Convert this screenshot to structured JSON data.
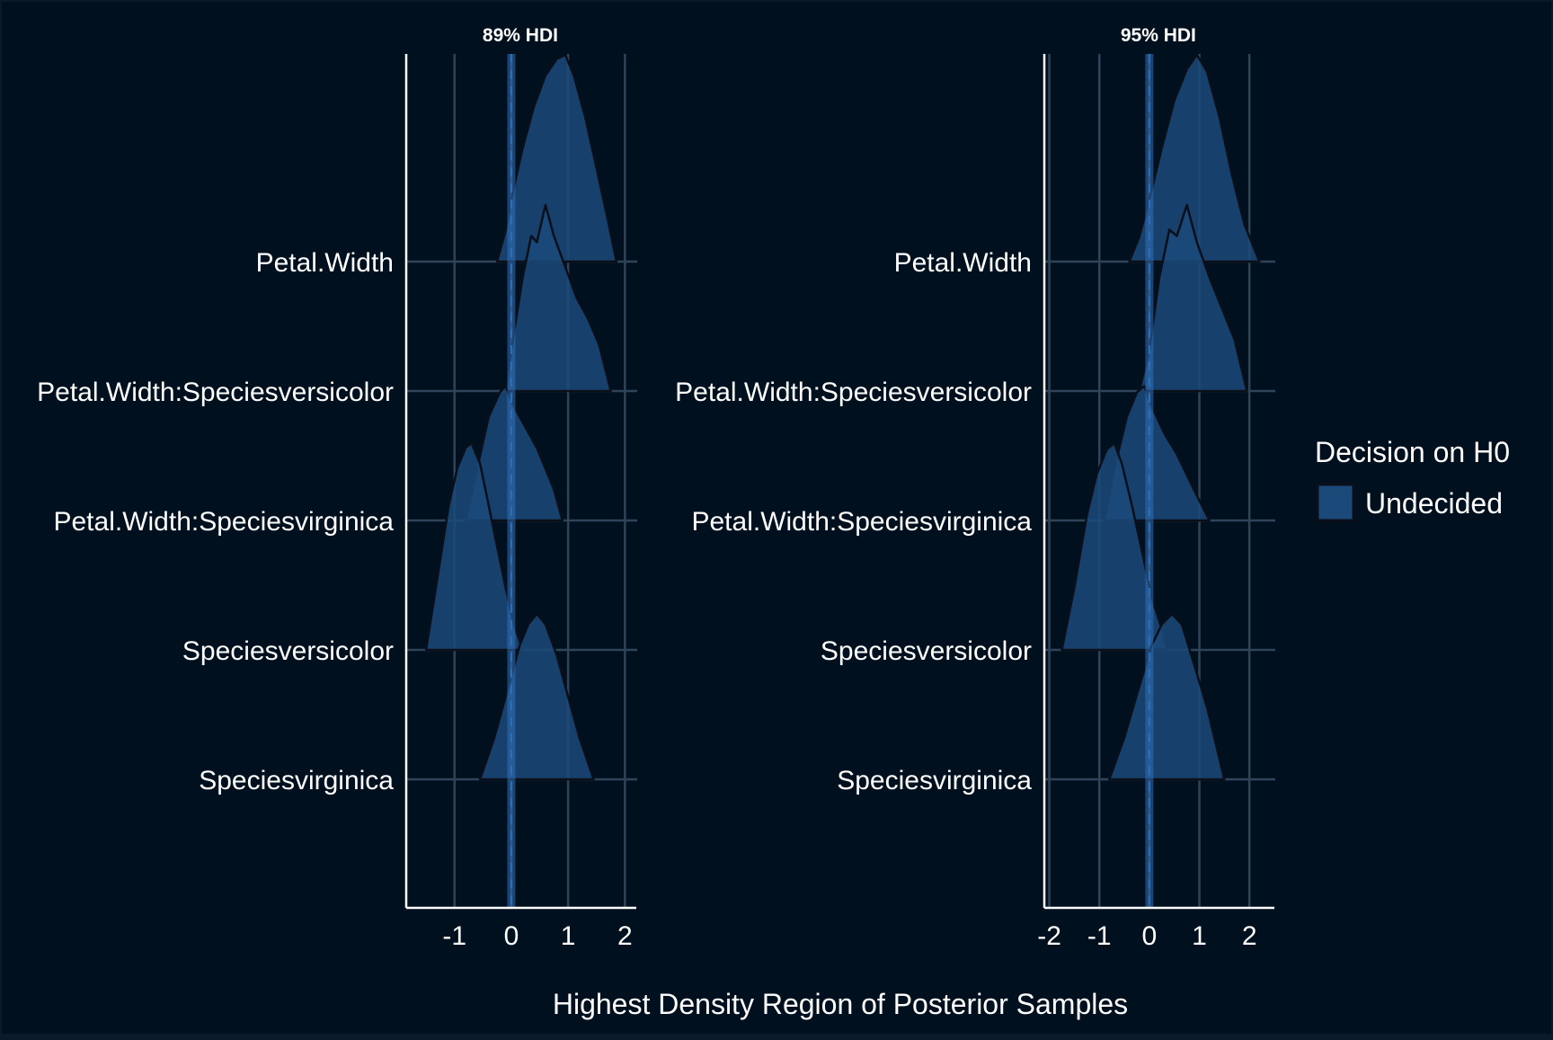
{
  "colors": {
    "background": "#00101f",
    "frame": "#0b1a2a",
    "grid": "#2f4458",
    "axis": "#ffffff",
    "text": "#ffffff",
    "ridge_fill": "#1b4a7a",
    "ridge_stroke": "#0a0f1a",
    "zero_line": "#2f6fb8"
  },
  "xlabel": "Highest Density Region of Posterior Samples",
  "legend": {
    "title": "Decision on H0",
    "items": [
      {
        "label": "Undecided",
        "color": "#1b4a7a"
      }
    ],
    "placement": "right"
  },
  "chart_data": [
    {
      "type": "ridgeline",
      "title": "89% HDI",
      "categories": [
        "Petal.Width",
        "Petal.Width:Speciesversicolor",
        "Petal.Width:Speciesvirginica",
        "Speciesversicolor",
        "Speciesvirginica"
      ],
      "xlim": [
        -1.85,
        2.2
      ],
      "xticks": [
        -1,
        0,
        1,
        2
      ],
      "tick_labels": [
        "-1",
        "0",
        "1",
        "2"
      ],
      "series": [
        {
          "category": "Petal.Width",
          "x": [
            -0.25,
            -0.1,
            0.0,
            0.2,
            0.4,
            0.6,
            0.8,
            0.95,
            1.1,
            1.3,
            1.5,
            1.7,
            1.85
          ],
          "density": [
            0.0,
            0.15,
            0.3,
            0.55,
            0.75,
            0.9,
            0.98,
            1.0,
            0.9,
            0.7,
            0.45,
            0.2,
            0.0
          ]
        },
        {
          "category": "Petal.Width:Speciesversicolor",
          "x": [
            -0.1,
            0.0,
            0.2,
            0.35,
            0.45,
            0.6,
            0.75,
            0.95,
            1.15,
            1.35,
            1.55,
            1.75
          ],
          "density": [
            0.0,
            0.2,
            0.55,
            0.75,
            0.72,
            0.9,
            0.75,
            0.6,
            0.45,
            0.35,
            0.22,
            0.0
          ]
        },
        {
          "category": "Petal.Width:Speciesvirginica",
          "x": [
            -0.8,
            -0.6,
            -0.4,
            -0.2,
            -0.1,
            0.05,
            0.25,
            0.45,
            0.6,
            0.75,
            0.9
          ],
          "density": [
            0.0,
            0.25,
            0.5,
            0.62,
            0.65,
            0.55,
            0.45,
            0.35,
            0.25,
            0.15,
            0.0
          ]
        },
        {
          "category": "Speciesversicolor",
          "x": [
            -1.5,
            -1.3,
            -1.1,
            -0.95,
            -0.8,
            -0.7,
            -0.55,
            -0.4,
            -0.25,
            -0.1,
            0.05,
            0.2
          ],
          "density": [
            0.0,
            0.35,
            0.7,
            0.88,
            0.98,
            1.0,
            0.9,
            0.7,
            0.5,
            0.3,
            0.12,
            0.0
          ]
        },
        {
          "category": "Speciesvirginica",
          "x": [
            -0.55,
            -0.3,
            -0.05,
            0.15,
            0.3,
            0.45,
            0.6,
            0.8,
            1.0,
            1.2,
            1.45
          ],
          "density": [
            0.0,
            0.2,
            0.45,
            0.65,
            0.75,
            0.8,
            0.75,
            0.6,
            0.4,
            0.2,
            0.0
          ]
        }
      ]
    },
    {
      "type": "ridgeline",
      "title": "95% HDI",
      "categories": [
        "Petal.Width",
        "Petal.Width:Speciesversicolor",
        "Petal.Width:Speciesvirginica",
        "Speciesversicolor",
        "Speciesvirginica"
      ],
      "xlim": [
        -2.1,
        2.5
      ],
      "xticks": [
        -2,
        -1,
        0,
        1,
        2
      ],
      "tick_labels": [
        "-2",
        "-1",
        "0",
        "1",
        "2"
      ],
      "series": [
        {
          "category": "Petal.Width",
          "x": [
            -0.4,
            -0.2,
            0.0,
            0.25,
            0.5,
            0.75,
            0.95,
            1.15,
            1.4,
            1.65,
            1.9,
            2.2
          ],
          "density": [
            0.0,
            0.12,
            0.3,
            0.55,
            0.78,
            0.93,
            1.0,
            0.92,
            0.7,
            0.42,
            0.18,
            0.0
          ]
        },
        {
          "category": "Petal.Width:Speciesversicolor",
          "x": [
            -0.2,
            0.0,
            0.2,
            0.4,
            0.55,
            0.75,
            0.95,
            1.2,
            1.45,
            1.7,
            1.95
          ],
          "density": [
            0.0,
            0.2,
            0.55,
            0.78,
            0.75,
            0.9,
            0.72,
            0.55,
            0.4,
            0.25,
            0.0
          ]
        },
        {
          "category": "Petal.Width:Speciesvirginica",
          "x": [
            -0.9,
            -0.7,
            -0.45,
            -0.25,
            -0.1,
            0.05,
            0.3,
            0.55,
            0.75,
            0.95,
            1.2
          ],
          "density": [
            0.0,
            0.25,
            0.5,
            0.62,
            0.65,
            0.55,
            0.42,
            0.32,
            0.22,
            0.12,
            0.0
          ]
        },
        {
          "category": "Speciesversicolor",
          "x": [
            -1.75,
            -1.5,
            -1.25,
            -1.05,
            -0.85,
            -0.7,
            -0.55,
            -0.35,
            -0.15,
            0.05,
            0.25,
            0.35
          ],
          "density": [
            0.0,
            0.3,
            0.65,
            0.85,
            0.97,
            1.0,
            0.9,
            0.7,
            0.48,
            0.25,
            0.1,
            0.0
          ]
        },
        {
          "category": "Speciesvirginica",
          "x": [
            -0.8,
            -0.5,
            -0.2,
            0.05,
            0.25,
            0.45,
            0.65,
            0.9,
            1.15,
            1.35,
            1.5
          ],
          "density": [
            0.0,
            0.2,
            0.45,
            0.65,
            0.75,
            0.8,
            0.75,
            0.55,
            0.35,
            0.15,
            0.0
          ]
        }
      ]
    }
  ]
}
